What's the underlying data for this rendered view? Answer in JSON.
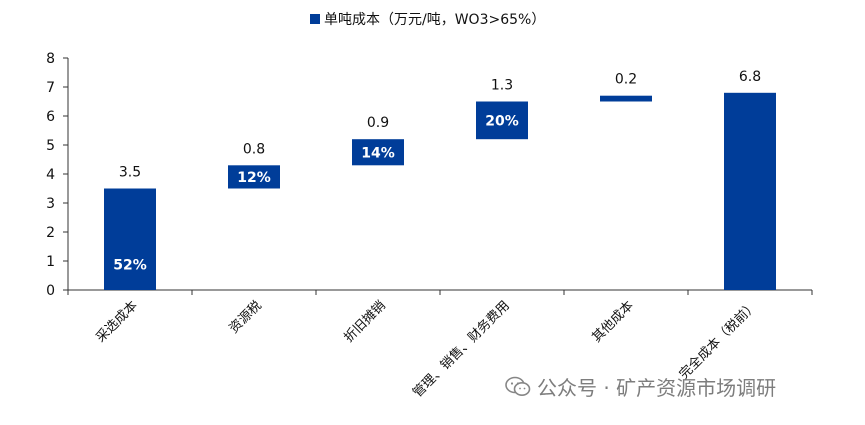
{
  "colors": {
    "bar": "#003d99",
    "axis": "#333333",
    "text": "#111111",
    "inner_label": "#ffffff"
  },
  "legend": {
    "label": "单吨成本（万元/吨，WO3>65%）"
  },
  "watermark": {
    "text": "公众号 · 矿产资源市场调研",
    "icon": "wechat-icon"
  },
  "chart_data": {
    "type": "waterfall",
    "ylim": [
      0,
      8
    ],
    "yticks": [
      0,
      1,
      2,
      3,
      4,
      5,
      6,
      7,
      8
    ],
    "categories": [
      "采选成本",
      "资源税",
      "折旧摊销",
      "管理、销售、财务费用",
      "其他成本",
      "完全成本（税前）"
    ],
    "series": [
      {
        "name": "单吨成本（万元/吨，WO3>65%）",
        "start": [
          0,
          3.5,
          4.3,
          5.2,
          6.5,
          0
        ],
        "end": [
          3.5,
          4.3,
          5.2,
          6.5,
          6.7,
          6.8
        ],
        "value_labels": [
          "3.5",
          "0.8",
          "0.9",
          "1.3",
          "0.2",
          "6.8"
        ],
        "inner_labels": [
          "52%",
          "12%",
          "14%",
          "20%",
          "",
          ""
        ]
      }
    ]
  }
}
